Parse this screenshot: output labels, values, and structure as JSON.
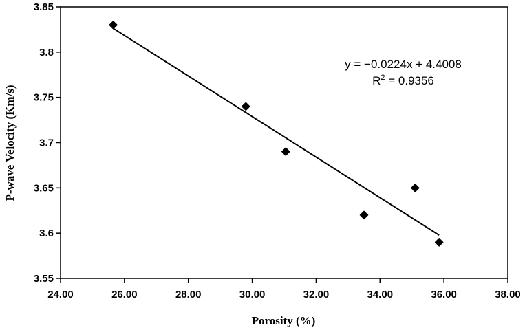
{
  "chart_data": {
    "type": "scatter",
    "title": "",
    "xlabel": "Porosity (%)",
    "ylabel": "P-wave Velocity (Km/s)",
    "xlim": [
      24,
      38
    ],
    "ylim": [
      3.55,
      3.85
    ],
    "x_ticks": [
      "24.00",
      "26.00",
      "28.00",
      "30.00",
      "32.00",
      "34.00",
      "36.00",
      "38.00"
    ],
    "y_ticks": [
      "3.55",
      "3.6",
      "3.65",
      "3.7",
      "3.75",
      "3.8",
      "3.85"
    ],
    "grid": false,
    "legend": "none",
    "marker": "diamond",
    "color": "#000000",
    "series": [
      {
        "x": [
          25.65,
          29.8,
          31.05,
          33.5,
          35.1,
          35.85
        ],
        "y": [
          3.83,
          3.74,
          3.69,
          3.62,
          3.65,
          3.59
        ]
      }
    ],
    "trendline": {
      "type": "linear",
      "slope": -0.0224,
      "intercept": 4.4008,
      "x_range": [
        25.65,
        35.85
      ],
      "equation_label": "y = −0.0224x + 4.4008",
      "r2_prefix": "R",
      "r2_exponent": "2",
      "r2_value": " = 0.9356"
    }
  }
}
